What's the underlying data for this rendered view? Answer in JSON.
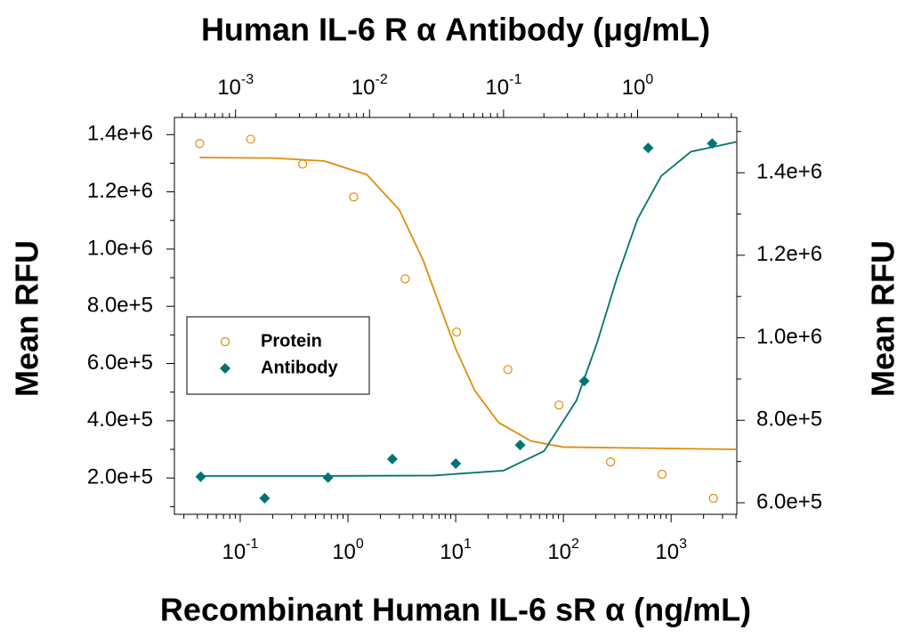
{
  "chart_data": {
    "type": "scatter",
    "x2label": "Human IL-6 R α Antibody (μg/mL)",
    "xlabel": "Recombinant Human IL-6 sR α (ng/mL)",
    "ylabel": "Mean RFU",
    "y2label": "Mean RFU",
    "xscale": "log",
    "xlim": [
      0.0245,
      4070
    ],
    "xticks": [
      {
        "value": 0.1,
        "label": "10",
        "exponent": "-1"
      },
      {
        "value": 1,
        "label": "10",
        "exponent": "0"
      },
      {
        "value": 10,
        "label": "10",
        "exponent": "1"
      },
      {
        "value": 100,
        "label": "10",
        "exponent": "2"
      },
      {
        "value": 1000,
        "label": "10",
        "exponent": "3"
      }
    ],
    "x2lim": [
      0.00035,
      5.5
    ],
    "x2ticks": [
      {
        "value": 0.001,
        "label": "10",
        "exponent": "-3"
      },
      {
        "value": 0.01,
        "label": "10",
        "exponent": "-2"
      },
      {
        "value": 0.1,
        "label": "10",
        "exponent": "-1"
      },
      {
        "value": 1,
        "label": "10",
        "exponent": "0"
      }
    ],
    "ylim": [
      73000,
      1460000
    ],
    "yticks": [
      {
        "value": 200000,
        "label": "2.0e+5"
      },
      {
        "value": 400000,
        "label": "4.0e+5"
      },
      {
        "value": 600000,
        "label": "6.0e+5"
      },
      {
        "value": 800000,
        "label": "8.0e+5"
      },
      {
        "value": 1000000,
        "label": "1.0e+6"
      },
      {
        "value": 1200000,
        "label": "1.2e+6"
      },
      {
        "value": 1400000,
        "label": "1.4e+6"
      }
    ],
    "y2lim": [
      572000,
      1534000
    ],
    "y2ticks": [
      {
        "value": 600000,
        "label": "6.0e+5"
      },
      {
        "value": 800000,
        "label": "8.0e+5"
      },
      {
        "value": 1000000,
        "label": "1.0e+6"
      },
      {
        "value": 1200000,
        "label": "1.2e+6"
      },
      {
        "value": 1400000,
        "label": "1.4e+6"
      }
    ],
    "legend": "middle-left",
    "series": [
      {
        "name": "Protein",
        "color": "#e08c0b",
        "marker": "circle",
        "x": [
          0.042,
          0.125,
          0.38,
          1.13,
          3.4,
          10.2,
          30.5,
          91,
          274,
          823,
          2470
        ],
        "values": [
          1369000,
          1384000,
          1297000,
          1182000,
          896000,
          710000,
          579000,
          455000,
          256000,
          213000,
          129000
        ],
        "fit_x": [
          0.042,
          0.2,
          0.6,
          1.5,
          3,
          5,
          7,
          10,
          15,
          25,
          50,
          100,
          4070
        ],
        "fit_values": [
          1320000,
          1318000,
          1308000,
          1260000,
          1137000,
          960000,
          810000,
          652000,
          506000,
          394000,
          329000,
          308000,
          300000
        ]
      },
      {
        "name": "Antibody",
        "color": "#00756f",
        "marker": "diamond",
        "axis": "y2",
        "xaxis": "x2",
        "x": [
          0.00055,
          0.00165,
          0.0049,
          0.0148,
          0.044,
          0.133,
          0.4,
          1.2,
          3.6
        ],
        "values": [
          663000,
          611000,
          661000,
          706000,
          695000,
          740000,
          895000,
          1460000,
          1471000
        ],
        "fit_x": [
          0.00055,
          0.005,
          0.03,
          0.1,
          0.2,
          0.35,
          0.5,
          0.7,
          1,
          1.5,
          2.5,
          5.5
        ],
        "fit_values": [
          665000,
          665000,
          666000,
          678000,
          725000,
          848000,
          989000,
          1144000,
          1288000,
          1392000,
          1451000,
          1475000
        ]
      }
    ]
  }
}
